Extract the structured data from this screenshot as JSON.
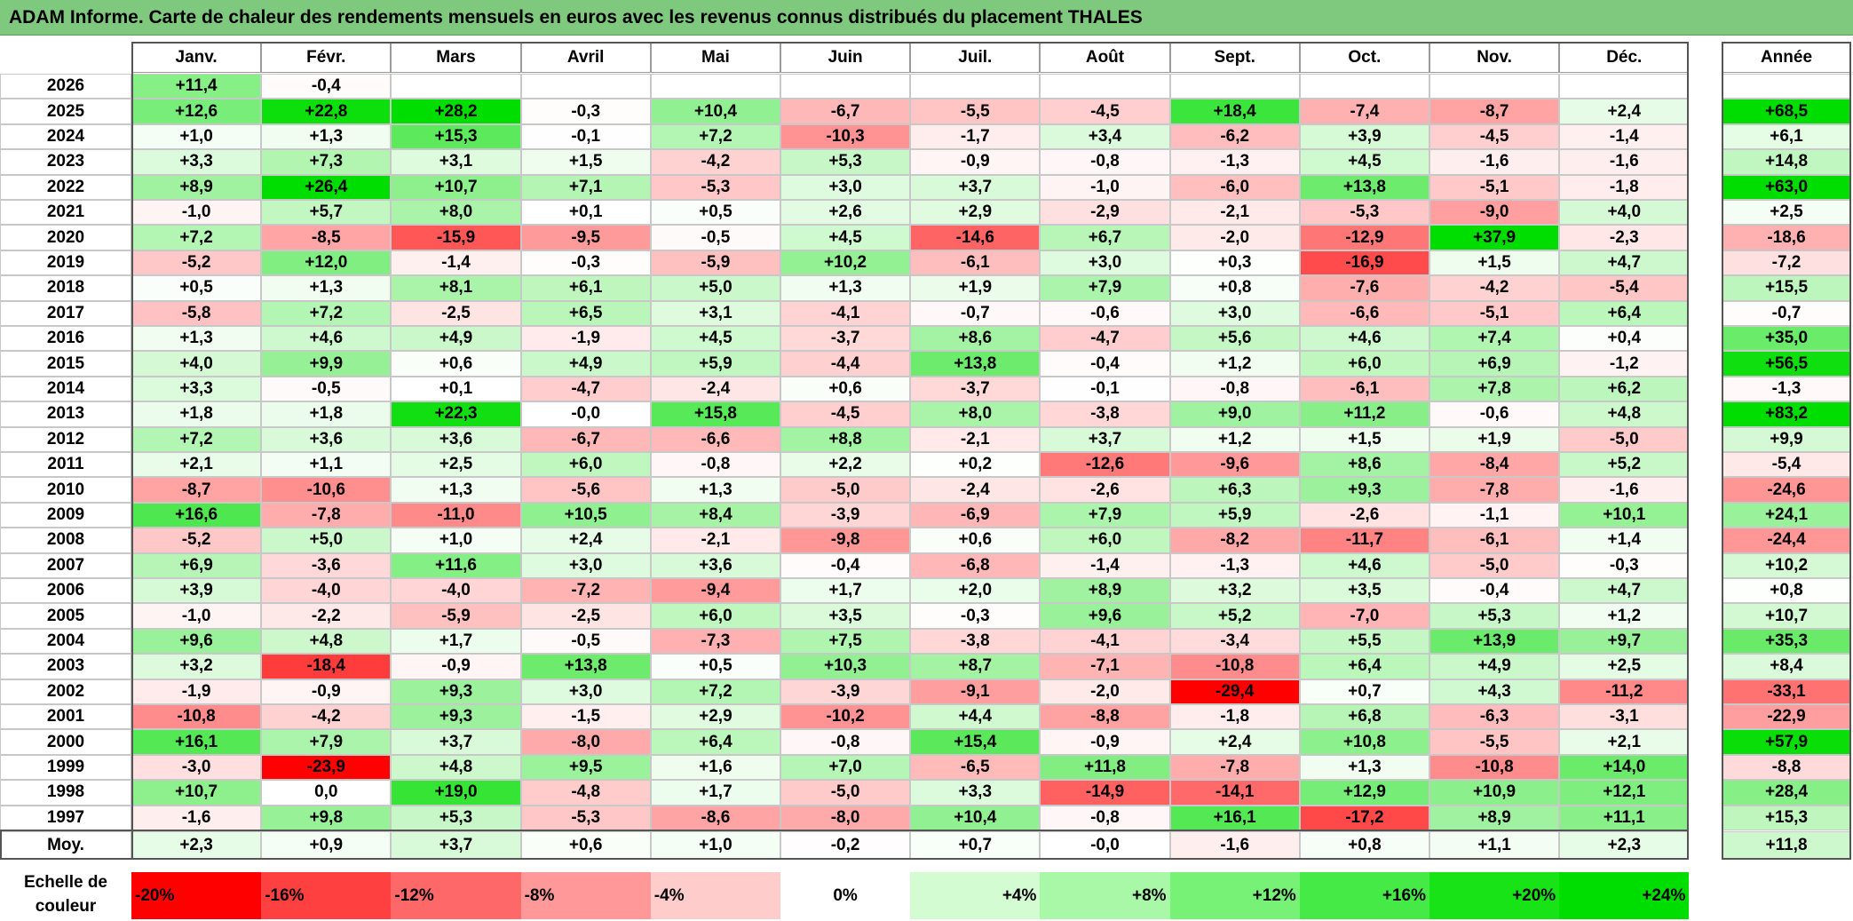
{
  "title": "ADAM Informe. Carte de chaleur des rendements mensuels en euros avec les revenus connus distribués du placement THALES",
  "scale_label": "Echelle de couleur",
  "chart_data": {
    "type": "heatmap",
    "title": "ADAM Informe. Carte de chaleur des rendements mensuels en euros avec les revenus connus distribués du placement THALES",
    "columns": [
      "Janv.",
      "Févr.",
      "Mars",
      "Avril",
      "Mai",
      "Juin",
      "Juil.",
      "Août",
      "Sept.",
      "Oct.",
      "Nov.",
      "Déc."
    ],
    "year_column": "Année",
    "rows": [
      {
        "year": "2026",
        "months": [
          "+11,4",
          "-0,4",
          "",
          "",
          "",
          "",
          "",
          "",
          "",
          "",
          "",
          ""
        ],
        "annual": ""
      },
      {
        "year": "2025",
        "months": [
          "+12,6",
          "+22,8",
          "+28,2",
          "-0,3",
          "+10,4",
          "-6,7",
          "-5,5",
          "-4,5",
          "+18,4",
          "-7,4",
          "-8,7",
          "+2,4"
        ],
        "annual": "+68,5"
      },
      {
        "year": "2024",
        "months": [
          "+1,0",
          "+1,3",
          "+15,3",
          "-0,1",
          "+7,2",
          "-10,3",
          "-1,7",
          "+3,4",
          "-6,2",
          "+3,9",
          "-4,5",
          "-1,4"
        ],
        "annual": "+6,1"
      },
      {
        "year": "2023",
        "months": [
          "+3,3",
          "+7,3",
          "+3,1",
          "+1,5",
          "-4,2",
          "+5,3",
          "-0,9",
          "-0,8",
          "-1,3",
          "+4,5",
          "-1,6",
          "-1,6"
        ],
        "annual": "+14,8"
      },
      {
        "year": "2022",
        "months": [
          "+8,9",
          "+26,4",
          "+10,7",
          "+7,1",
          "-5,3",
          "+3,0",
          "+3,7",
          "-1,0",
          "-6,0",
          "+13,8",
          "-5,1",
          "-1,8"
        ],
        "annual": "+63,0"
      },
      {
        "year": "2021",
        "months": [
          "-1,0",
          "+5,7",
          "+8,0",
          "+0,1",
          "+0,5",
          "+2,6",
          "+2,9",
          "-2,9",
          "-2,1",
          "-5,3",
          "-9,0",
          "+4,0"
        ],
        "annual": "+2,5"
      },
      {
        "year": "2020",
        "months": [
          "+7,2",
          "-8,5",
          "-15,9",
          "-9,5",
          "-0,5",
          "+4,5",
          "-14,6",
          "+6,7",
          "-2,0",
          "-12,9",
          "+37,9",
          "-2,3"
        ],
        "annual": "-18,6"
      },
      {
        "year": "2019",
        "months": [
          "-5,2",
          "+12,0",
          "-1,4",
          "-0,3",
          "-5,9",
          "+10,2",
          "-6,1",
          "+3,0",
          "+0,3",
          "-16,9",
          "+1,5",
          "+4,7"
        ],
        "annual": "-7,2"
      },
      {
        "year": "2018",
        "months": [
          "+0,5",
          "+1,3",
          "+8,1",
          "+6,1",
          "+5,0",
          "+1,3",
          "+1,9",
          "+7,9",
          "+0,8",
          "-7,6",
          "-4,2",
          "-5,4"
        ],
        "annual": "+15,5"
      },
      {
        "year": "2017",
        "months": [
          "-5,8",
          "+7,2",
          "-2,5",
          "+6,5",
          "+3,1",
          "-4,1",
          "-0,7",
          "-0,6",
          "+3,0",
          "-6,6",
          "-5,1",
          "+6,4"
        ],
        "annual": "-0,7"
      },
      {
        "year": "2016",
        "months": [
          "+1,3",
          "+4,6",
          "+4,9",
          "-1,9",
          "+4,5",
          "-3,7",
          "+8,6",
          "-4,7",
          "+5,6",
          "+4,6",
          "+7,4",
          "+0,4"
        ],
        "annual": "+35,0"
      },
      {
        "year": "2015",
        "months": [
          "+4,0",
          "+9,9",
          "+0,6",
          "+4,9",
          "+5,9",
          "-4,4",
          "+13,8",
          "-0,4",
          "+1,2",
          "+6,0",
          "+6,9",
          "-1,2"
        ],
        "annual": "+56,5"
      },
      {
        "year": "2014",
        "months": [
          "+3,3",
          "-0,5",
          "+0,1",
          "-4,7",
          "-2,4",
          "+0,6",
          "-3,7",
          "-0,1",
          "-0,8",
          "-6,1",
          "+7,8",
          "+6,2"
        ],
        "annual": "-1,3"
      },
      {
        "year": "2013",
        "months": [
          "+1,8",
          "+1,8",
          "+22,3",
          "-0,0",
          "+15,8",
          "-4,5",
          "+8,0",
          "-3,8",
          "+9,0",
          "+11,2",
          "-0,6",
          "+4,8"
        ],
        "annual": "+83,2"
      },
      {
        "year": "2012",
        "months": [
          "+7,2",
          "+3,6",
          "+3,6",
          "-6,7",
          "-6,6",
          "+8,8",
          "-2,1",
          "+3,7",
          "+1,2",
          "+1,5",
          "+1,9",
          "-5,0"
        ],
        "annual": "+9,9"
      },
      {
        "year": "2011",
        "months": [
          "+2,1",
          "+1,1",
          "+2,5",
          "+6,0",
          "-0,8",
          "+2,2",
          "+0,2",
          "-12,6",
          "-9,6",
          "+8,6",
          "-8,4",
          "+5,2"
        ],
        "annual": "-5,4"
      },
      {
        "year": "2010",
        "months": [
          "-8,7",
          "-10,6",
          "+1,3",
          "-5,6",
          "+1,3",
          "-5,0",
          "-2,4",
          "-2,6",
          "+6,3",
          "+9,3",
          "-7,8",
          "-1,6"
        ],
        "annual": "-24,6"
      },
      {
        "year": "2009",
        "months": [
          "+16,6",
          "-7,8",
          "-11,0",
          "+10,5",
          "+8,4",
          "-3,9",
          "-6,9",
          "+7,9",
          "+5,9",
          "-2,6",
          "-1,1",
          "+10,1"
        ],
        "annual": "+24,1"
      },
      {
        "year": "2008",
        "months": [
          "-5,2",
          "+5,0",
          "+1,0",
          "+2,4",
          "-2,1",
          "-9,8",
          "+0,6",
          "+6,0",
          "-8,2",
          "-11,7",
          "-6,1",
          "+1,4"
        ],
        "annual": "-24,4"
      },
      {
        "year": "2007",
        "months": [
          "+6,9",
          "-3,6",
          "+11,6",
          "+3,0",
          "+3,6",
          "-0,4",
          "-6,8",
          "-1,4",
          "-1,3",
          "+4,6",
          "-5,0",
          "-0,3"
        ],
        "annual": "+10,2"
      },
      {
        "year": "2006",
        "months": [
          "+3,9",
          "-4,0",
          "-4,0",
          "-7,2",
          "-9,4",
          "+1,7",
          "+2,0",
          "+8,9",
          "+3,2",
          "+3,5",
          "-0,4",
          "+4,7"
        ],
        "annual": "+0,8"
      },
      {
        "year": "2005",
        "months": [
          "-1,0",
          "-2,2",
          "-5,9",
          "-2,5",
          "+6,0",
          "+3,5",
          "-0,3",
          "+9,6",
          "+5,2",
          "-7,0",
          "+5,3",
          "+1,2"
        ],
        "annual": "+10,7"
      },
      {
        "year": "2004",
        "months": [
          "+9,6",
          "+4,8",
          "+1,7",
          "-0,5",
          "-7,3",
          "+7,5",
          "-3,8",
          "-4,1",
          "-3,4",
          "+5,5",
          "+13,9",
          "+9,7"
        ],
        "annual": "+35,3"
      },
      {
        "year": "2003",
        "months": [
          "+3,2",
          "-18,4",
          "-0,9",
          "+13,8",
          "+0,5",
          "+10,3",
          "+8,7",
          "-7,1",
          "-10,8",
          "+6,4",
          "+4,9",
          "+2,5"
        ],
        "annual": "+8,4"
      },
      {
        "year": "2002",
        "months": [
          "-1,9",
          "-0,9",
          "+9,3",
          "+3,0",
          "+7,2",
          "-3,9",
          "-9,1",
          "-2,0",
          "-29,4",
          "+0,7",
          "+4,3",
          "-11,2"
        ],
        "annual": "-33,1"
      },
      {
        "year": "2001",
        "months": [
          "-10,8",
          "-4,2",
          "+9,3",
          "-1,5",
          "+2,9",
          "-10,2",
          "+4,4",
          "-8,8",
          "-1,8",
          "+6,8",
          "-6,3",
          "-3,1"
        ],
        "annual": "-22,9"
      },
      {
        "year": "2000",
        "months": [
          "+16,1",
          "+7,9",
          "+3,7",
          "-8,0",
          "+6,4",
          "-0,8",
          "+15,4",
          "-0,9",
          "+2,4",
          "+10,8",
          "-5,5",
          "+2,1"
        ],
        "annual": "+57,9"
      },
      {
        "year": "1999",
        "months": [
          "-3,0",
          "-23,9",
          "+4,8",
          "+9,5",
          "+1,6",
          "+7,0",
          "-6,5",
          "+11,8",
          "-7,8",
          "+1,3",
          "-10,8",
          "+14,0"
        ],
        "annual": "-8,8"
      },
      {
        "year": "1998",
        "months": [
          "+10,7",
          "0,0",
          "+19,0",
          "-4,8",
          "+1,7",
          "-5,0",
          "+3,3",
          "-14,9",
          "-14,1",
          "+12,9",
          "+10,9",
          "+12,1"
        ],
        "annual": "+28,4"
      },
      {
        "year": "1997",
        "months": [
          "-1,6",
          "+9,8",
          "+5,3",
          "-5,3",
          "-8,6",
          "-8,0",
          "+10,4",
          "-0,8",
          "+16,1",
          "-17,2",
          "+8,9",
          "+11,1"
        ],
        "annual": "+15,3"
      }
    ],
    "average": {
      "label": "Moy.",
      "months": [
        "+2,3",
        "+0,9",
        "+3,7",
        "+0,6",
        "+1,0",
        "-0,2",
        "+0,7",
        "-0,0",
        "-1,6",
        "+0,8",
        "+1,1",
        "+2,3"
      ],
      "annual": "+11,8"
    },
    "color_scale": [
      {
        "label": "-20%",
        "color": "#ff0000",
        "align": "left"
      },
      {
        "label": "-16%",
        "color": "#ff4040",
        "align": "left"
      },
      {
        "label": "-12%",
        "color": "#ff6868",
        "align": "left"
      },
      {
        "label": "-8%",
        "color": "#ff9898",
        "align": "left"
      },
      {
        "label": "-4%",
        "color": "#ffcccc",
        "align": "left"
      },
      {
        "label": "0%",
        "color": "#ffffff",
        "align": "center"
      },
      {
        "label": "+4%",
        "color": "#d3fcd3",
        "align": "right"
      },
      {
        "label": "+8%",
        "color": "#a8f8a8",
        "align": "right"
      },
      {
        "label": "+12%",
        "color": "#77f277",
        "align": "right"
      },
      {
        "label": "+16%",
        "color": "#46ea46",
        "align": "right"
      },
      {
        "label": "+20%",
        "color": "#17e317",
        "align": "right"
      },
      {
        "label": "+24%",
        "color": "#00dd00",
        "align": "right"
      }
    ]
  }
}
